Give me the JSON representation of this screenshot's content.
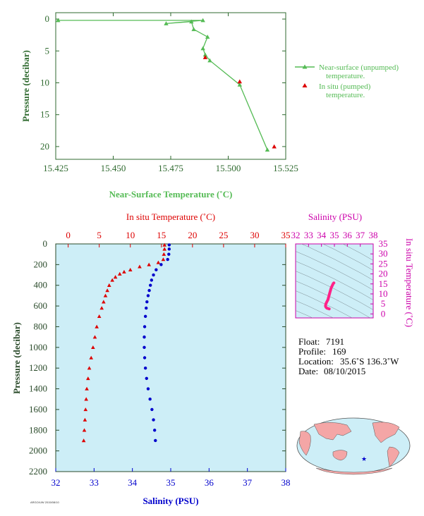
{
  "colors": {
    "top_axis": "#2f6a2f",
    "near_surface": "#55bb55",
    "in_situ": "#dd0000",
    "temperature": "#dd0000",
    "salinity": "#0000cc",
    "ts_axis": "#cc00aa",
    "ts_line": "#ff2288",
    "panel_bg": "#cdeef7",
    "main_axis": "#2a4a2a"
  },
  "chart_data": [
    {
      "id": "near_surface",
      "type": "line",
      "xlabel": "Near-Surface Temperature (˚C)",
      "ylabel": "Pressure (decibar)",
      "xlim": [
        15.425,
        15.525
      ],
      "ylim": [
        22,
        -1
      ],
      "xticks": [
        "15.425",
        "15.450",
        "15.475",
        "15.500",
        "15.525"
      ],
      "yticks": [
        "0",
        "5",
        "10",
        "15",
        "20"
      ],
      "series": [
        {
          "name": "Near-surface (unpumped) temperature.",
          "marker": "triangle",
          "x": [
            15.426,
            15.489,
            15.473,
            15.484,
            15.485,
            15.491,
            15.489,
            15.49,
            15.492,
            15.505,
            15.517
          ],
          "y": [
            0.2,
            0.2,
            0.7,
            0.4,
            1.6,
            2.8,
            4.6,
            5.6,
            6.5,
            10.3,
            20.5
          ]
        },
        {
          "name": "In situ (pumped) temperature.",
          "marker": "triangle",
          "x": [
            15.49,
            15.505,
            15.52
          ],
          "y": [
            6.0,
            9.8,
            20.0
          ]
        }
      ]
    },
    {
      "id": "profile",
      "type": "scatter",
      "ylabel": "Pressure (decibar)",
      "ylim": [
        2200,
        0
      ],
      "yticks": [
        "0",
        "200",
        "400",
        "600",
        "800",
        "1000",
        "1200",
        "1400",
        "1600",
        "1800",
        "2000",
        "2200"
      ],
      "temperature_axis": {
        "label": "In situ Temperature (˚C)",
        "lim": [
          -2,
          35
        ],
        "ticks": [
          "0",
          "5",
          "10",
          "15",
          "20",
          "25",
          "30",
          "35"
        ]
      },
      "salinity_axis": {
        "label": "Salinity (PSU)",
        "lim": [
          32,
          38
        ],
        "ticks": [
          "32",
          "33",
          "34",
          "35",
          "36",
          "37",
          "38"
        ]
      },
      "temperature": {
        "pressure": [
          10,
          50,
          100,
          150,
          180,
          200,
          220,
          250,
          270,
          290,
          320,
          350,
          400,
          450,
          500,
          560,
          620,
          700,
          800,
          900,
          1000,
          1100,
          1200,
          1300,
          1400,
          1500,
          1600,
          1700,
          1800,
          1900
        ],
        "values": [
          15.5,
          15.5,
          15.4,
          15.3,
          14.5,
          13.0,
          11.5,
          10.0,
          9.0,
          8.3,
          7.6,
          7.1,
          6.6,
          6.3,
          6.0,
          5.7,
          5.4,
          5.0,
          4.6,
          4.3,
          4.0,
          3.7,
          3.4,
          3.2,
          3.0,
          2.9,
          2.8,
          2.7,
          2.6,
          2.5
        ]
      },
      "salinity": {
        "pressure": [
          10,
          50,
          100,
          150,
          200,
          250,
          300,
          350,
          400,
          450,
          500,
          560,
          620,
          700,
          800,
          900,
          1000,
          1100,
          1200,
          1300,
          1400,
          1500,
          1600,
          1700,
          1800,
          1900
        ],
        "values": [
          34.96,
          34.96,
          34.95,
          34.92,
          34.75,
          34.62,
          34.55,
          34.5,
          34.47,
          34.44,
          34.41,
          34.38,
          34.36,
          34.34,
          34.32,
          34.31,
          34.31,
          34.32,
          34.34,
          34.37,
          34.41,
          34.46,
          34.51,
          34.55,
          34.58,
          34.6
        ]
      }
    },
    {
      "id": "ts_diagram",
      "type": "line",
      "xlabel": "Salinity (PSU)",
      "ylabel": "In situ Temperature (˚C)",
      "xlim": [
        32,
        38
      ],
      "ylim": [
        -2,
        35
      ],
      "xticks": [
        "32",
        "33",
        "34",
        "35",
        "36",
        "37",
        "38"
      ],
      "yticks": [
        "0",
        "5",
        "10",
        "15",
        "20",
        "25",
        "30",
        "35"
      ],
      "series": [
        {
          "salinity": [
            34.96,
            34.92,
            34.75,
            34.62,
            34.5,
            34.41,
            34.34,
            34.31,
            34.34,
            34.41,
            34.51,
            34.6
          ],
          "temperature": [
            15.5,
            15.3,
            13.0,
            10.0,
            7.1,
            6.0,
            5.0,
            4.0,
            3.4,
            2.9,
            2.7,
            2.5
          ]
        }
      ]
    }
  ],
  "legend": {
    "near_surface_line1": "Near-surface (unpumped)",
    "near_surface_line2": "temperature.",
    "in_situ_line1": "In situ (pumped)",
    "in_situ_line2": "temperature."
  },
  "info": {
    "float_label": "Float:",
    "float_value": "7191",
    "profile_label": "Profile:",
    "profile_value": "169",
    "location_label": "Location:",
    "location_value": "35.6˚S  136.3˚W",
    "date_label": "Date:",
    "date_value": "08/10/2015"
  },
  "footer_text": "ARGO/UW 2015/08/10"
}
